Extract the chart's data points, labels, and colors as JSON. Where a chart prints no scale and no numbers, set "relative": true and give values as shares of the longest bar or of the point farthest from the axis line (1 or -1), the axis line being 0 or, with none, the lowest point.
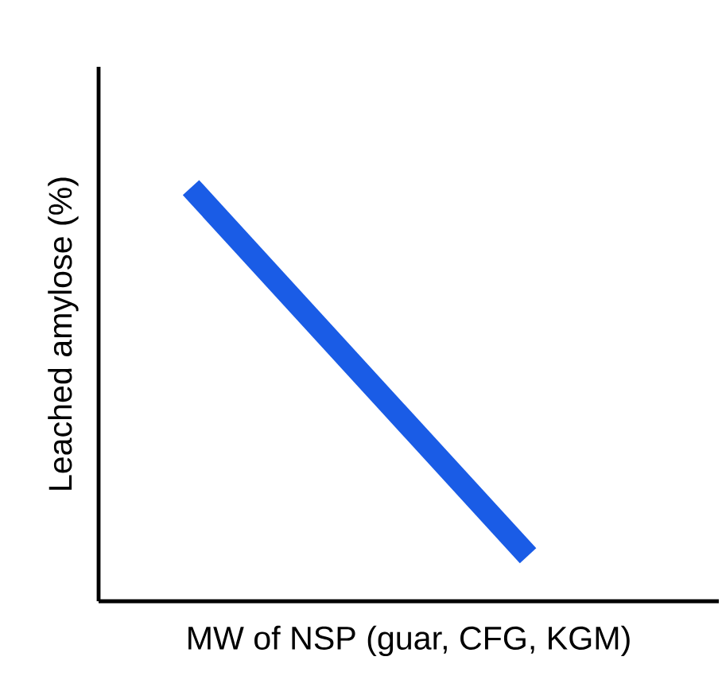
{
  "chart_data": {
    "type": "line",
    "relative": true,
    "xlabel": "MW of NSP (guar, CFG, KGM)",
    "ylabel": "Leached amylose (%)",
    "categories": [
      null,
      null
    ],
    "series": [
      {
        "color": "#1a5ce6",
        "values": [
          1,
          0.11
        ]
      }
    ],
    "marker": "none",
    "line_style": "solid",
    "tick_labels": false
  }
}
